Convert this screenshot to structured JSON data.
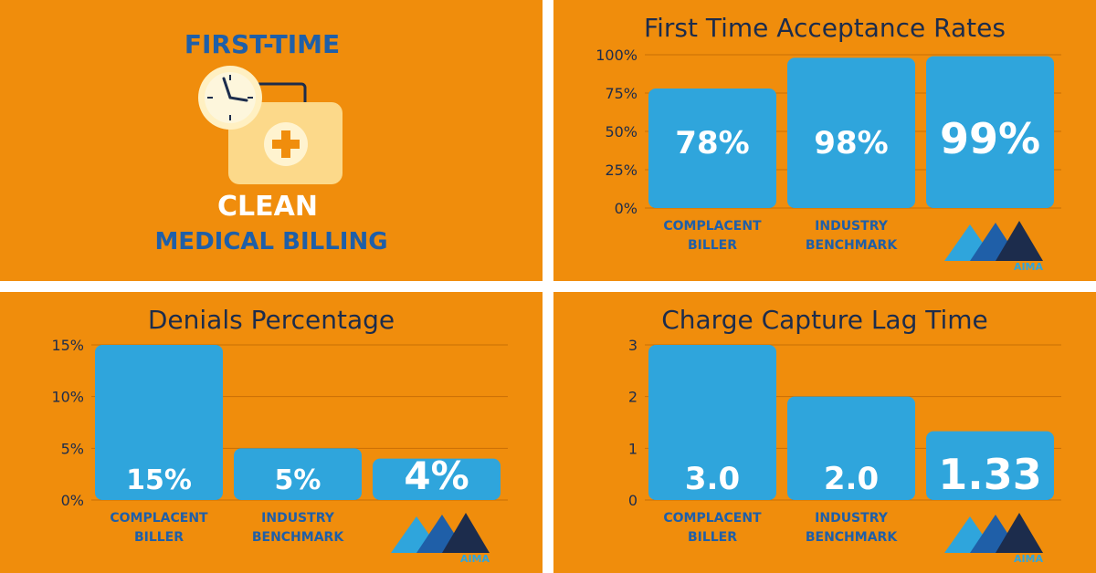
{
  "intro": {
    "line1": "FIRST-TIME",
    "line2": "CLEAN",
    "line3": "MEDICAL BILLING",
    "icon": "clock-and-medical-kit-icon"
  },
  "logo": {
    "text": "AIMA",
    "icon": "aima-mountain-logo"
  },
  "colors": {
    "background": "#f08d0c",
    "bar": "#2fa5dc",
    "title": "#1c2c4c",
    "category": "#1f5fa8",
    "gridline": "#c96f05"
  },
  "chart_data": [
    {
      "type": "bar",
      "title": "First Time Acceptance Rates",
      "categories": [
        "COMPLACENT BILLER",
        "INDUSTRY BENCHMARK",
        ""
      ],
      "values": [
        78,
        98,
        99
      ],
      "value_labels": [
        "78%",
        "98%",
        "99%"
      ],
      "yticks": [
        "0%",
        "25%",
        "50%",
        "75%",
        "100%"
      ],
      "ylim": [
        0,
        100
      ],
      "grid": true
    },
    {
      "type": "bar",
      "title": "Denials Percentage",
      "categories": [
        "COMPLACENT BILLER",
        "INDUSTRY BENCHMARK",
        ""
      ],
      "values": [
        15,
        5,
        4
      ],
      "value_labels": [
        "15%",
        "5%",
        "4%"
      ],
      "yticks": [
        "0%",
        "5%",
        "10%",
        "15%"
      ],
      "ylim": [
        0,
        15
      ],
      "grid": true
    },
    {
      "type": "bar",
      "title": "Charge Capture Lag Time",
      "categories": [
        "COMPLACENT BILLER",
        "INDUSTRY BENCHMARK",
        ""
      ],
      "values": [
        3.0,
        2.0,
        1.33
      ],
      "value_labels": [
        "3.0",
        "2.0",
        "1.33"
      ],
      "yticks": [
        "0",
        "1",
        "2",
        "3"
      ],
      "ylim": [
        0,
        3
      ],
      "grid": true
    }
  ]
}
